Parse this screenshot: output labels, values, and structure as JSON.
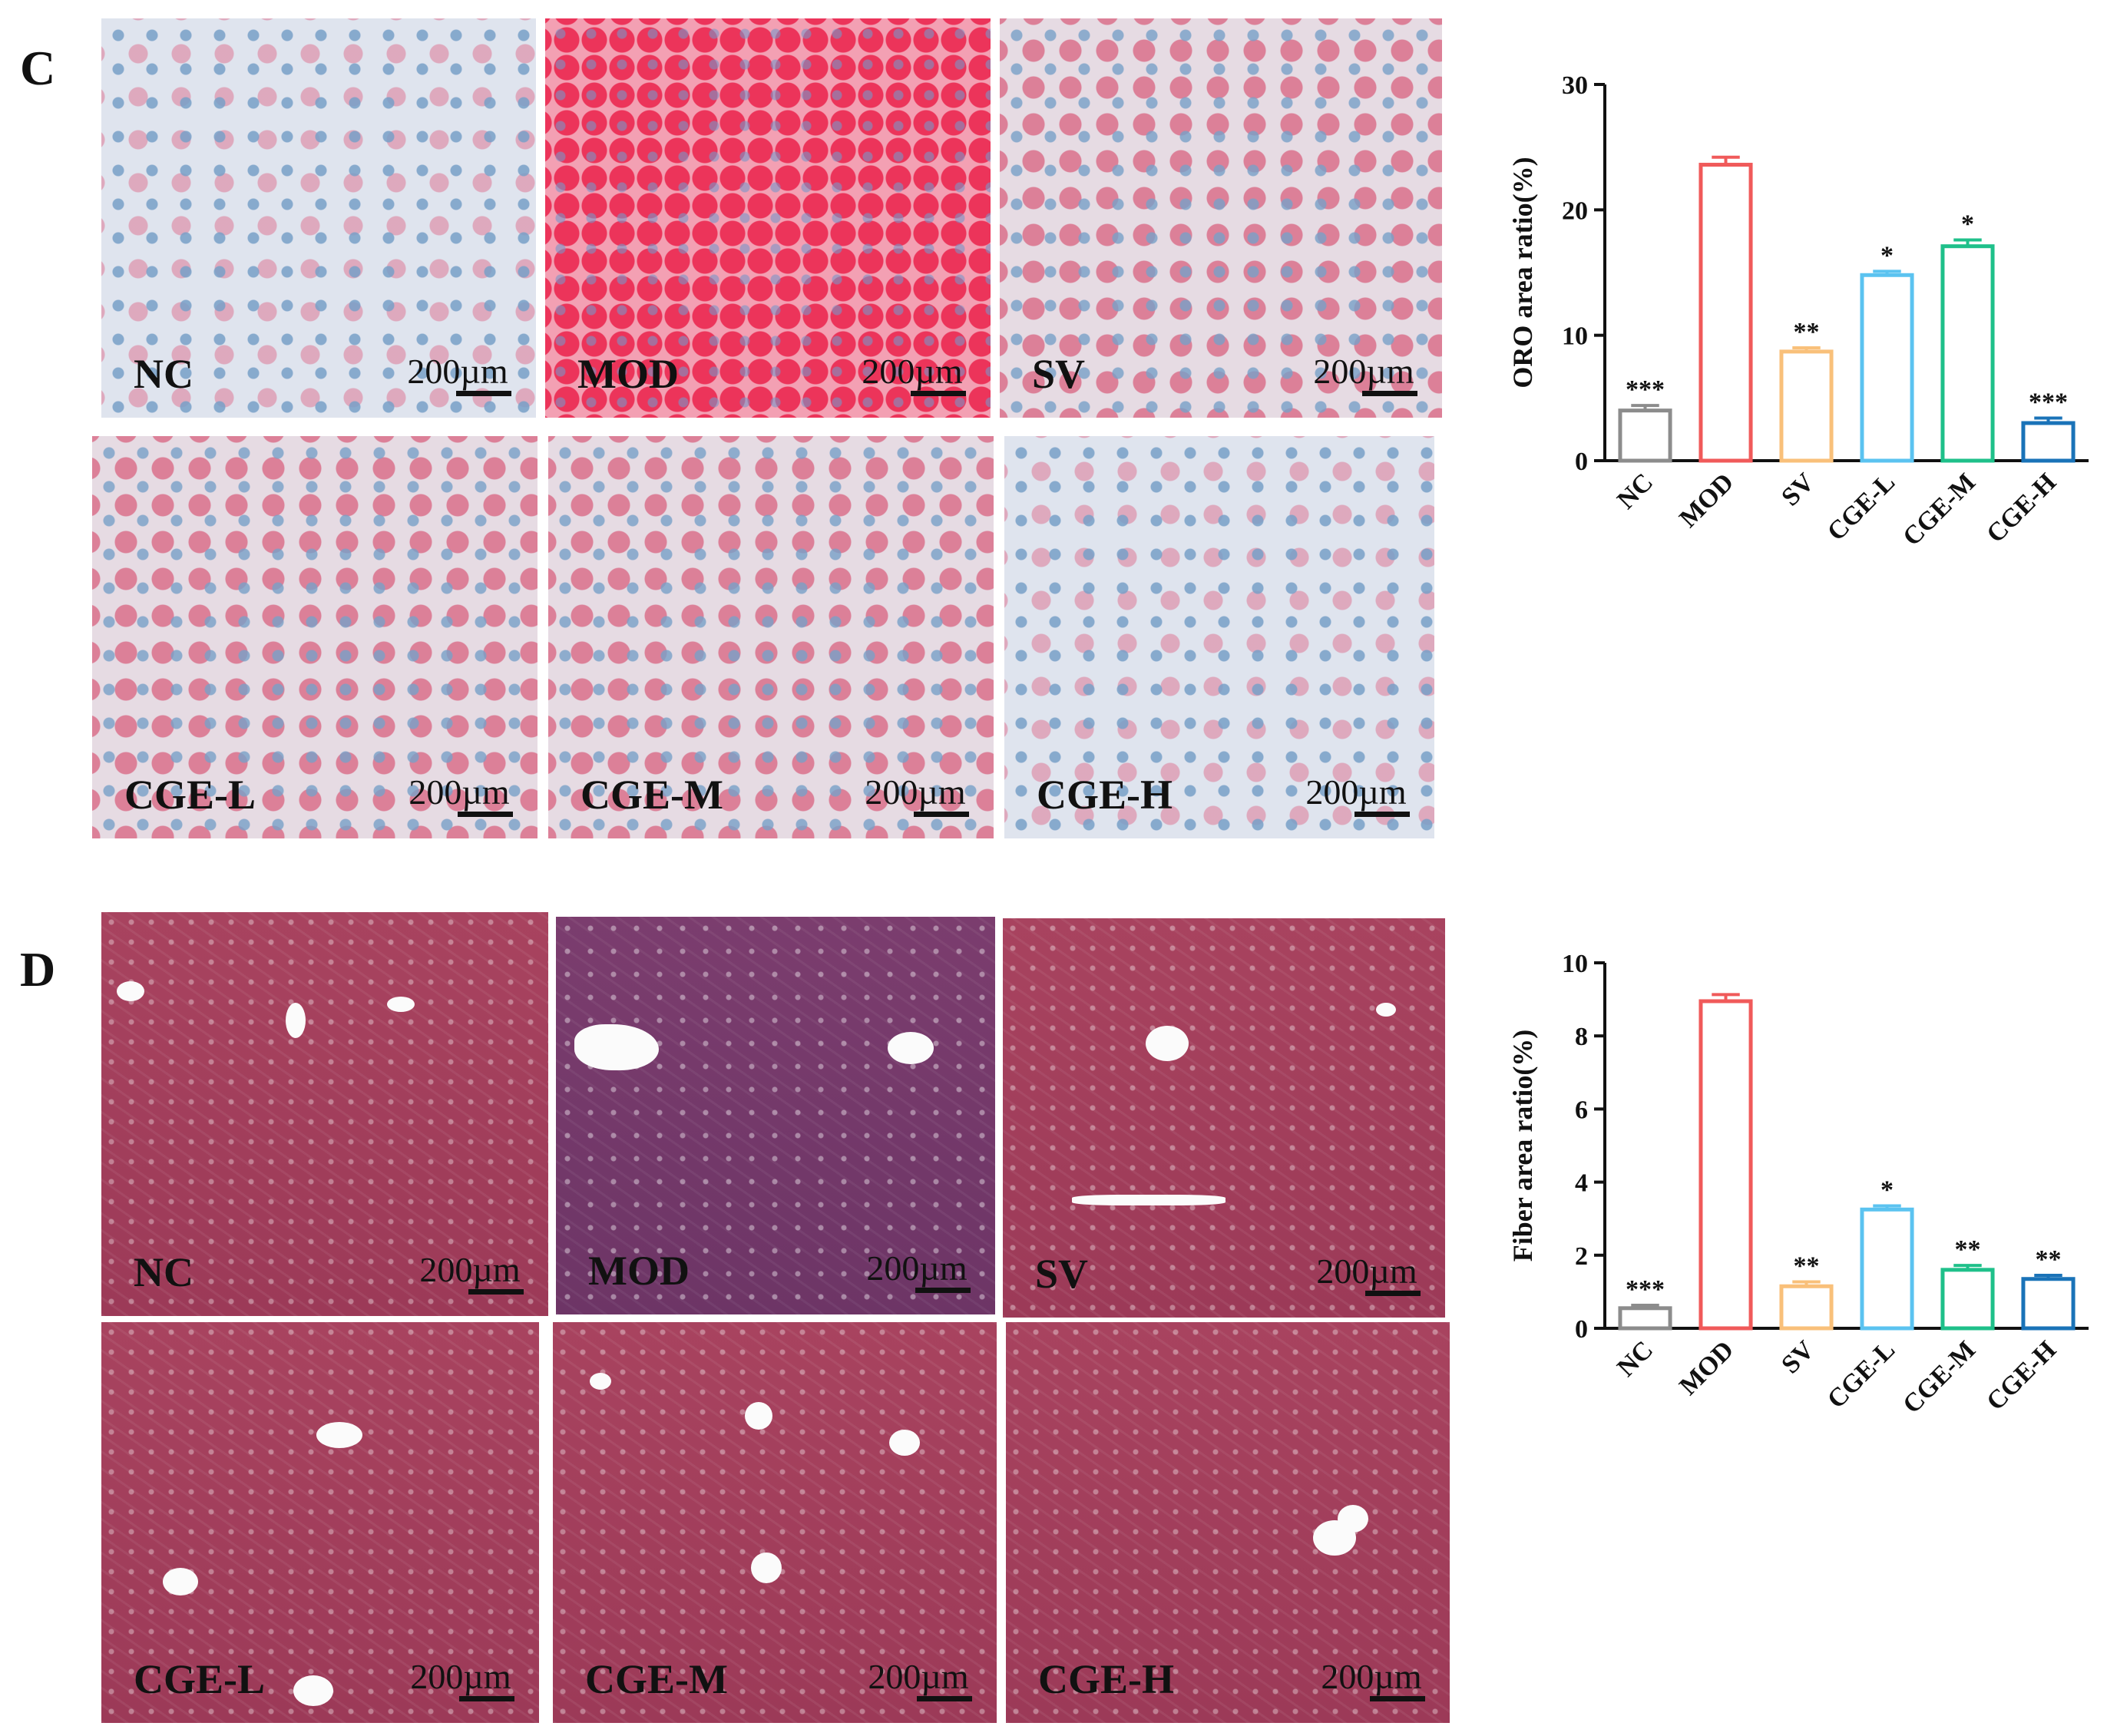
{
  "panels": {
    "c_letter": "C",
    "d_letter": "D"
  },
  "oro_tiles": [
    {
      "label": "NC",
      "scale": "200µm"
    },
    {
      "label": "MOD",
      "scale": "200µm"
    },
    {
      "label": "SV",
      "scale": "200µm"
    },
    {
      "label": "CGE-L",
      "scale": "200µm"
    },
    {
      "label": "CGE-M",
      "scale": "200µm"
    },
    {
      "label": "CGE-H",
      "scale": "200µm"
    }
  ],
  "masson_tiles": [
    {
      "label": "NC",
      "scale": "200µm"
    },
    {
      "label": "MOD",
      "scale": "200µm"
    },
    {
      "label": "SV",
      "scale": "200µm"
    },
    {
      "label": "CGE-L",
      "scale": "200µm"
    },
    {
      "label": "CGE-M",
      "scale": "200µm"
    },
    {
      "label": "CGE-H",
      "scale": "200µm"
    }
  ],
  "chart_data": [
    {
      "type": "bar",
      "categories": [
        "NC",
        "MOD",
        "SV",
        "CGE-L",
        "CGE-M",
        "CGE-H"
      ],
      "values": [
        4.0,
        23.6,
        8.7,
        14.8,
        17.1,
        3.0
      ],
      "errors": [
        0.4,
        0.6,
        0.3,
        0.3,
        0.5,
        0.4
      ],
      "significance": [
        "***",
        "",
        "**",
        "*",
        "*",
        "***"
      ],
      "colors": [
        "#8c8c8c",
        "#f05a5a",
        "#f9c07a",
        "#5bc3f0",
        "#1fc08a",
        "#1a73b8"
      ],
      "ylabel": "ORO area ratio(%)",
      "ylim": [
        0,
        30
      ],
      "yticks": [
        0,
        10,
        20,
        30
      ]
    },
    {
      "type": "bar",
      "categories": [
        "NC",
        "MOD",
        "SV",
        "CGE-L",
        "CGE-M",
        "CGE-H"
      ],
      "values": [
        0.55,
        8.95,
        1.15,
        3.25,
        1.6,
        1.35
      ],
      "errors": [
        0.08,
        0.18,
        0.12,
        0.1,
        0.12,
        0.1
      ],
      "significance": [
        "***",
        "",
        "**",
        "*",
        "**",
        "**"
      ],
      "colors": [
        "#8c8c8c",
        "#f05a5a",
        "#f9c07a",
        "#5bc3f0",
        "#1fc08a",
        "#1a73b8"
      ],
      "ylabel": "Fiber area ratio(%)",
      "ylim": [
        0,
        10
      ],
      "yticks": [
        0,
        2,
        4,
        6,
        8,
        10
      ]
    }
  ]
}
